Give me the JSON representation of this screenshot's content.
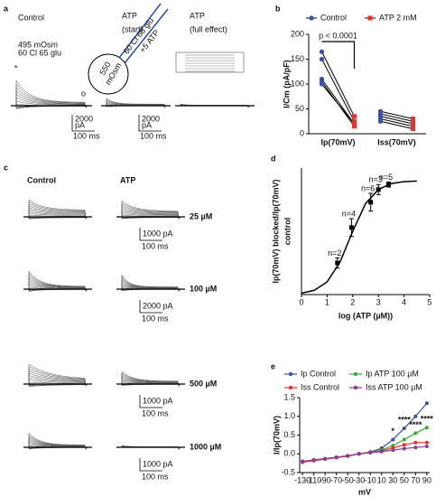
{
  "figure": {
    "panel_labels": [
      "a",
      "b",
      "c",
      "d",
      "e"
    ],
    "a": {
      "control": "Control",
      "atp_start": [
        "ATP",
        "(start)"
      ],
      "atp_full": [
        "ATP",
        "(full effect)"
      ],
      "bath": [
        "495 mOsm",
        "60 Cl 65 glu"
      ],
      "cell": [
        "550",
        "mOsm"
      ],
      "pipette": [
        "60 Cl 65 glu",
        "+5 ATP"
      ],
      "markers": [
        "*",
        "o"
      ],
      "scale_bars": [
        [
          "2000",
          "pA",
          "100 ms"
        ],
        [
          "2000",
          "pA",
          "100 ms"
        ]
      ]
    },
    "c": {
      "columns": [
        "Control",
        "ATP"
      ],
      "rows": [
        "25 µM",
        "100 µM",
        "500 µM",
        "1000 µM"
      ],
      "scale_bars": [
        [
          "1000 pA",
          "100 ms"
        ],
        [
          "2000 pA",
          "100 ms"
        ],
        [
          "1000 pA",
          "100 ms"
        ],
        [
          "1000 pA",
          "100 ms"
        ]
      ]
    }
  },
  "chart_data": [
    {
      "type": "paired-scatter",
      "ylabel": "I/Cm (pA/pF)",
      "categories": [
        "Ip(70mV)",
        "Iss(70mV)"
      ],
      "series": [
        {
          "name": "Control",
          "color": "#3b4fa8",
          "values": [
            [
              165,
              150,
              110,
              105,
              100
            ],
            [
              45,
              40,
              35,
              30,
              25
            ]
          ]
        },
        {
          "name": "ATP 2 mM",
          "color": "#e8312f",
          "values": [
            [
              35,
              25,
              20,
              15,
              20
            ],
            [
              30,
              25,
              20,
              15,
              10
            ]
          ]
        }
      ],
      "ylim": [
        0,
        200
      ],
      "yticks": [
        0,
        50,
        100,
        150,
        200
      ],
      "annotation": "p < 0.0001",
      "legend": "top"
    },
    {
      "type": "dose-response",
      "xlabel": "log (ATP (µM))",
      "ylabel": [
        "Ip(70mV) blocked/Ip(70mV)",
        "control"
      ],
      "x": [
        1.4,
        1.95,
        2.7,
        3.0,
        3.4
      ],
      "values": [
        0.25,
        0.53,
        0.73,
        0.83,
        0.87
      ],
      "errors": [
        0.04,
        0.07,
        0.07,
        0.04,
        0.02
      ],
      "point_labels": [
        "n=2",
        "n=4",
        "n=6",
        "n=3",
        "n=5"
      ],
      "fit": {
        "x": [
          0,
          0.5,
          1,
          1.5,
          2,
          2.5,
          3,
          3.5,
          4,
          4.5
        ],
        "values": [
          0.011,
          0.034,
          0.1,
          0.256,
          0.5,
          0.72,
          0.83,
          0.878,
          0.893,
          0.897
        ]
      },
      "xlim": [
        0,
        5
      ],
      "xticks": [
        0,
        1,
        2,
        3,
        4,
        5
      ],
      "ylim": [
        0,
        1
      ],
      "color": "#000000"
    },
    {
      "type": "line",
      "xlabel": "mV",
      "ylabel": "I/Ip(70mV)",
      "x": [
        -130,
        -110,
        -90,
        -70,
        -50,
        -30,
        -10,
        10,
        30,
        50,
        70,
        90
      ],
      "series": [
        {
          "name": "Ip Control",
          "color": "#3b4fa8",
          "values": [
            -0.22,
            -0.18,
            -0.14,
            -0.1,
            -0.06,
            0.0,
            0.05,
            0.15,
            0.38,
            0.68,
            1.0,
            1.35
          ]
        },
        {
          "name": "Ip ATP 100 µM",
          "color": "#3aaa35",
          "values": [
            -0.2,
            -0.17,
            -0.13,
            -0.09,
            -0.05,
            0.0,
            0.04,
            0.1,
            0.22,
            0.38,
            0.55,
            0.7
          ]
        },
        {
          "name": "Iss Control",
          "color": "#e8312f",
          "values": [
            -0.22,
            -0.18,
            -0.14,
            -0.1,
            -0.06,
            0.0,
            0.04,
            0.08,
            0.16,
            0.24,
            0.3,
            0.3
          ]
        },
        {
          "name": "Iss ATP 100 µM",
          "color": "#8b3a96",
          "values": [
            -0.2,
            -0.16,
            -0.13,
            -0.09,
            -0.05,
            0.0,
            0.03,
            0.06,
            0.1,
            0.14,
            0.17,
            0.2
          ]
        }
      ],
      "annotations": [
        {
          "x": 30,
          "text": "*"
        },
        {
          "x": 50,
          "text": "****"
        },
        {
          "x": 70,
          "text": "****"
        },
        {
          "x": 90,
          "text": "****"
        }
      ],
      "xlim": [
        -135,
        95
      ],
      "xticks": [
        -130,
        -110,
        -90,
        -70,
        -50,
        -30,
        -10,
        10,
        30,
        50,
        70,
        90
      ],
      "ylim": [
        -0.5,
        1.5
      ],
      "yticks": [
        -0.5,
        {
          "value": 0,
          "label": "0.0"
        },
        0.5,
        {
          "value": 1,
          "label": "1.0"
        },
        1.5
      ],
      "legend": "top"
    }
  ]
}
